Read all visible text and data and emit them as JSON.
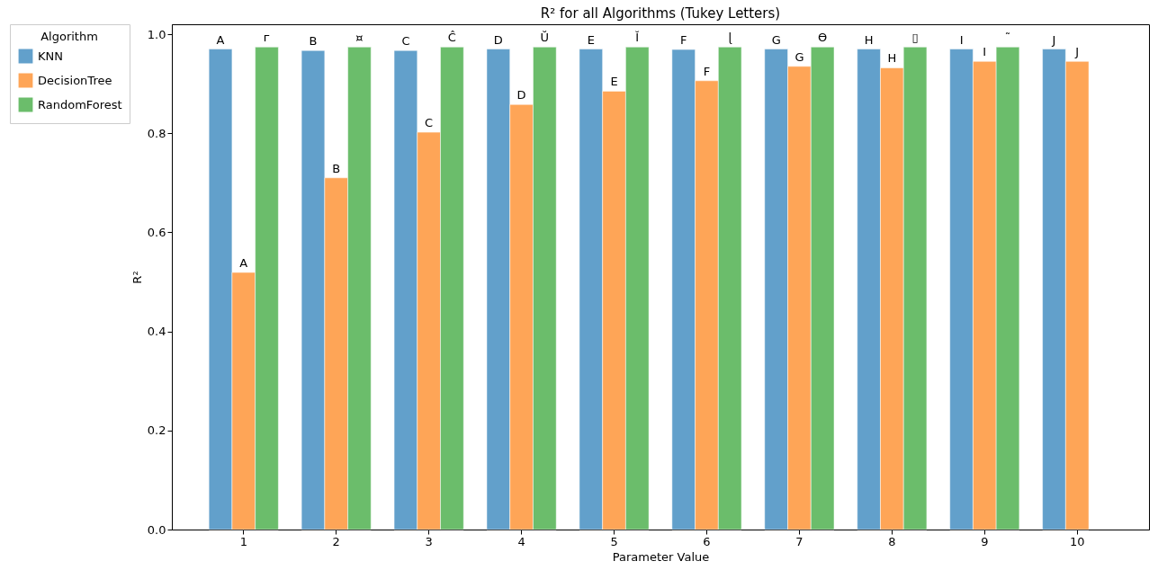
{
  "chart_data": {
    "type": "bar",
    "title": "R² for all Algorithms (Tukey Letters)",
    "xlabel": "Parameter Value",
    "ylabel": "R²",
    "legend_title": "Algorithm",
    "categories": [
      "1",
      "2",
      "3",
      "4",
      "5",
      "6",
      "7",
      "8",
      "9",
      "10"
    ],
    "series": [
      {
        "name": "KNN",
        "color": "#62a0cb",
        "values": [
          0.97,
          0.967,
          0.967,
          0.97,
          0.97,
          0.969,
          0.97,
          0.97,
          0.97,
          0.97
        ],
        "value_labels": [
          "A",
          "B",
          "C",
          "D",
          "E",
          "F",
          "G",
          "H",
          "I",
          "J"
        ]
      },
      {
        "name": "DecisionTree",
        "color": "#fea557",
        "values": [
          0.519,
          0.71,
          0.802,
          0.858,
          0.885,
          0.906,
          0.935,
          0.932,
          0.945,
          0.945
        ],
        "value_labels": [
          "A",
          "B",
          "C",
          "D",
          "E",
          "F",
          "G",
          "H",
          "I",
          "J"
        ]
      },
      {
        "name": "RandomForest",
        "color": "#6bbd6b",
        "values": [
          0.974,
          0.974,
          0.974,
          0.974,
          0.974,
          0.974,
          0.974,
          0.974,
          0.974,
          null
        ],
        "value_labels": [
          "ᴦ",
          "¤",
          "Ĉ",
          "Ŭ",
          "Ĭ",
          "ɭ",
          "Ɵ",
          "▯",
          "˜",
          null
        ]
      }
    ],
    "ylim": [
      0,
      1.02
    ],
    "yticks": [
      {
        "value": 0,
        "label": "0.0"
      },
      0.2,
      0.4,
      0.6,
      0.8,
      {
        "value": 1,
        "label": "1.0"
      }
    ],
    "grid": false,
    "legend": "top left"
  }
}
